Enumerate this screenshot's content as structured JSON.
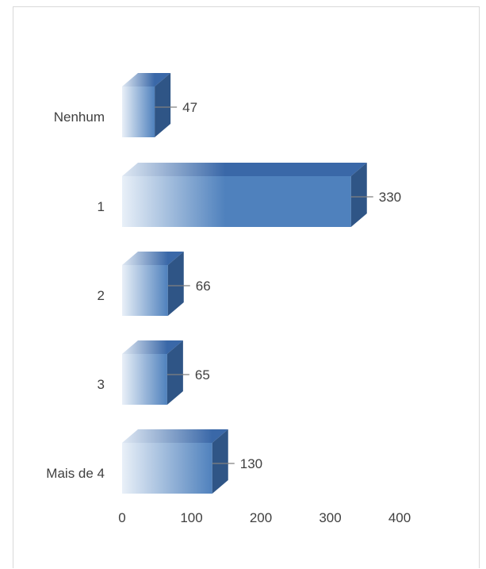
{
  "chart_data": {
    "type": "bar",
    "orientation": "horizontal",
    "style": "3d-gradient",
    "categories": [
      "Nenhum",
      "1",
      "2",
      "3",
      "Mais de 4"
    ],
    "values": [
      47,
      330,
      66,
      65,
      130
    ],
    "data_labels": [
      "47",
      "330",
      "66",
      "65",
      "130"
    ],
    "xlim": [
      0,
      400
    ],
    "xticks": [
      0,
      100,
      200,
      300,
      400
    ],
    "tick_labels": [
      "0",
      "100",
      "200",
      "300",
      "400"
    ],
    "title": "",
    "xlabel": "",
    "ylabel": "",
    "grid": false,
    "legend": "none",
    "colors": {
      "bar_front": "#4f81bd",
      "bar_front_light": "#e9f0f8",
      "bar_top": "#3a68a8",
      "bar_side": "#2f5586",
      "leader_line": "#808080",
      "text": "#404040"
    }
  }
}
